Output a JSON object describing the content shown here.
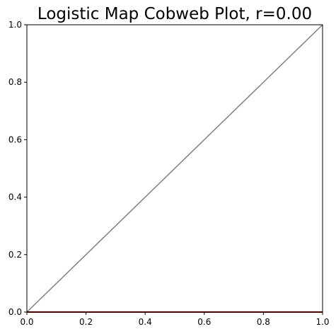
{
  "chart_data": {
    "type": "line",
    "title": "Logistic Map Cobweb Plot, r=0.00",
    "xlabel": "",
    "ylabel": "",
    "xlim": [
      0,
      1
    ],
    "ylim": [
      0,
      1
    ],
    "grid": false,
    "xticks": [
      "0.0",
      "0.2",
      "0.4",
      "0.6",
      "0.8",
      "1.0"
    ],
    "yticks": [
      "0.0",
      "0.2",
      "0.4",
      "0.6",
      "0.8",
      "1.0"
    ],
    "series": [
      {
        "color": "#808080",
        "x": [
          0,
          1
        ],
        "y": [
          0,
          1
        ]
      },
      {
        "color": "#8b0000",
        "x": [
          0,
          1
        ],
        "y": [
          0,
          0
        ]
      }
    ]
  }
}
